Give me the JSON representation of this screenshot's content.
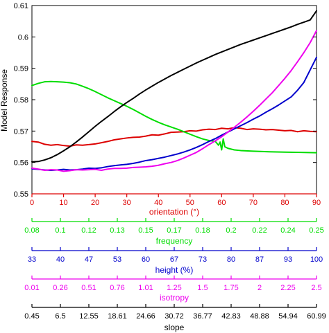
{
  "chart_data": {
    "type": "line",
    "ylabel": "Model Response",
    "ylim": [
      0.55,
      0.61
    ],
    "yticks": [
      "0.55",
      "0.56",
      "0.57",
      "0.58",
      "0.59",
      "0.6",
      "0.61"
    ],
    "grid": false,
    "colors": {
      "orientation": "#dd0000",
      "frequency": "#00dd00",
      "height": "#0000cc",
      "isotropy": "#ee00ee",
      "slope": "#000000"
    },
    "x_axes": [
      {
        "id": "orientation",
        "title": "orientation (°)",
        "color": "#dd0000",
        "ticks": [
          "0",
          "10",
          "20",
          "30",
          "40",
          "50",
          "60",
          "70",
          "80",
          "90"
        ]
      },
      {
        "id": "frequency",
        "title": "frequency",
        "color": "#00dd00",
        "ticks": [
          "0.08",
          "0.1",
          "0.12",
          "0.13",
          "0.15",
          "0.17",
          "0.18",
          "0.2",
          "0.22",
          "0.24",
          "0.25"
        ]
      },
      {
        "id": "height",
        "title": "height (%)",
        "color": "#0000cc",
        "ticks": [
          "33",
          "40",
          "47",
          "53",
          "60",
          "67",
          "73",
          "80",
          "87",
          "93",
          "100"
        ]
      },
      {
        "id": "isotropy",
        "title": "isotropy",
        "color": "#ee00ee",
        "ticks": [
          "0.01",
          "0.26",
          "0.51",
          "0.76",
          "1.01",
          "1.25",
          "1.5",
          "1.75",
          "2",
          "2.25",
          "2.5"
        ]
      },
      {
        "id": "slope",
        "title": "slope",
        "color": "#000000",
        "ticks": [
          "0.45",
          "6.5",
          "12.55",
          "18.61",
          "24.66",
          "30.72",
          "36.77",
          "42.83",
          "48.88",
          "54.94",
          "60.99"
        ]
      }
    ],
    "series": [
      {
        "axis": "orientation",
        "color": "#dd0000",
        "x": [
          0,
          2,
          4,
          6,
          8,
          10,
          12,
          14,
          16,
          18,
          20,
          22,
          24,
          26,
          28,
          30,
          32,
          34,
          36,
          38,
          40,
          42,
          44,
          46,
          48,
          50,
          52,
          54,
          56,
          58,
          60,
          62,
          64,
          66,
          68,
          70,
          72,
          74,
          76,
          78,
          80,
          82,
          84,
          86,
          88,
          90
        ],
        "y": [
          0.5667,
          0.5665,
          0.5658,
          0.5655,
          0.5657,
          0.5654,
          0.5652,
          0.5656,
          0.5655,
          0.5657,
          0.5659,
          0.5663,
          0.5667,
          0.5672,
          0.5675,
          0.5678,
          0.568,
          0.5681,
          0.5684,
          0.5688,
          0.5687,
          0.5691,
          0.5696,
          0.5697,
          0.5698,
          0.5701,
          0.57,
          0.5704,
          0.5706,
          0.5705,
          0.5709,
          0.5707,
          0.5711,
          0.5709,
          0.5705,
          0.5707,
          0.5706,
          0.5704,
          0.5705,
          0.5703,
          0.5701,
          0.5702,
          0.5698,
          0.5701,
          0.5699,
          0.5698
        ]
      },
      {
        "axis": "orientation",
        "color": "#00dd00",
        "x": [
          0,
          2,
          4,
          6,
          8,
          10,
          12,
          14,
          16,
          18,
          20,
          22,
          24,
          26,
          28,
          30,
          32,
          34,
          36,
          38,
          40,
          42,
          44,
          46,
          48,
          50,
          52,
          54,
          56,
          58,
          59,
          59.5,
          60,
          60.5,
          61,
          62,
          64,
          66,
          70,
          75,
          80,
          85,
          90
        ],
        "y": [
          0.5845,
          0.5852,
          0.5857,
          0.5858,
          0.5857,
          0.5856,
          0.5854,
          0.585,
          0.5843,
          0.5835,
          0.5826,
          0.5816,
          0.5806,
          0.5797,
          0.5788,
          0.5779,
          0.5769,
          0.5758,
          0.5747,
          0.5737,
          0.5728,
          0.572,
          0.5713,
          0.5706,
          0.5698,
          0.569,
          0.5682,
          0.5675,
          0.567,
          0.5667,
          0.5655,
          0.5665,
          0.564,
          0.5675,
          0.565,
          0.5645,
          0.564,
          0.5638,
          0.5636,
          0.5634,
          0.5633,
          0.5632,
          0.5631
        ]
      },
      {
        "axis": "orientation",
        "color": "#0000cc",
        "x": [
          0,
          2,
          4,
          6,
          8,
          10,
          12,
          14,
          16,
          18,
          20,
          22,
          24,
          26,
          28,
          30,
          32,
          34,
          36,
          38,
          40,
          42,
          44,
          46,
          48,
          50,
          52,
          54,
          56,
          58,
          60,
          62,
          64,
          66,
          68,
          70,
          72,
          74,
          76,
          78,
          80,
          82,
          84,
          86,
          88,
          90
        ],
        "y": [
          0.558,
          0.5578,
          0.5576,
          0.5575,
          0.5576,
          0.5578,
          0.5576,
          0.5577,
          0.5579,
          0.5582,
          0.5581,
          0.5583,
          0.5587,
          0.559,
          0.5592,
          0.5594,
          0.5597,
          0.5601,
          0.5606,
          0.5609,
          0.5613,
          0.5617,
          0.5622,
          0.5627,
          0.5633,
          0.564,
          0.5648,
          0.5657,
          0.5667,
          0.5676,
          0.5687,
          0.5697,
          0.5707,
          0.5717,
          0.5727,
          0.5738,
          0.5748,
          0.576,
          0.5771,
          0.5783,
          0.5796,
          0.5809,
          0.583,
          0.5855,
          0.5895,
          0.5935
        ]
      },
      {
        "axis": "orientation",
        "color": "#ee00ee",
        "x": [
          0,
          2,
          4,
          6,
          8,
          10,
          12,
          14,
          16,
          18,
          20,
          22,
          24,
          26,
          28,
          30,
          32,
          34,
          36,
          38,
          40,
          42,
          44,
          46,
          48,
          50,
          52,
          54,
          56,
          58,
          60,
          62,
          64,
          66,
          68,
          70,
          72,
          74,
          76,
          78,
          80,
          82,
          84,
          86,
          88,
          90
        ],
        "y": [
          0.5582,
          0.5579,
          0.5575,
          0.5577,
          0.5576,
          0.5572,
          0.5574,
          0.5577,
          0.5576,
          0.5577,
          0.5578,
          0.5575,
          0.5579,
          0.5581,
          0.5581,
          0.5582,
          0.5584,
          0.5585,
          0.5586,
          0.5588,
          0.5591,
          0.5596,
          0.56,
          0.5606,
          0.5614,
          0.5623,
          0.5632,
          0.5644,
          0.5657,
          0.5669,
          0.5682,
          0.5697,
          0.5712,
          0.5728,
          0.5745,
          0.5763,
          0.5782,
          0.5802,
          0.5822,
          0.5845,
          0.5868,
          0.5893,
          0.5921,
          0.595,
          0.5982,
          0.602
        ]
      },
      {
        "axis": "orientation",
        "color": "#000000",
        "x": [
          0,
          2,
          4,
          6,
          8,
          10,
          12,
          14,
          16,
          18,
          20,
          22,
          24,
          26,
          28,
          30,
          32,
          34,
          36,
          38,
          40,
          42,
          44,
          46,
          48,
          50,
          52,
          54,
          56,
          58,
          60,
          62,
          64,
          66,
          68,
          70,
          72,
          74,
          76,
          78,
          80,
          82,
          84,
          86,
          88,
          90
        ],
        "y": [
          0.5602,
          0.5603,
          0.5608,
          0.5615,
          0.5625,
          0.5637,
          0.565,
          0.5665,
          0.5681,
          0.5698,
          0.5715,
          0.5731,
          0.5746,
          0.5762,
          0.5777,
          0.5791,
          0.5804,
          0.5818,
          0.5831,
          0.5843,
          0.5855,
          0.5866,
          0.5877,
          0.5887,
          0.5897,
          0.5907,
          0.5917,
          0.5926,
          0.5935,
          0.5944,
          0.5952,
          0.596,
          0.5968,
          0.5976,
          0.5983,
          0.599,
          0.5997,
          0.6004,
          0.6011,
          0.6018,
          0.6025,
          0.6032,
          0.604,
          0.6047,
          0.6054,
          0.6083
        ]
      }
    ]
  }
}
